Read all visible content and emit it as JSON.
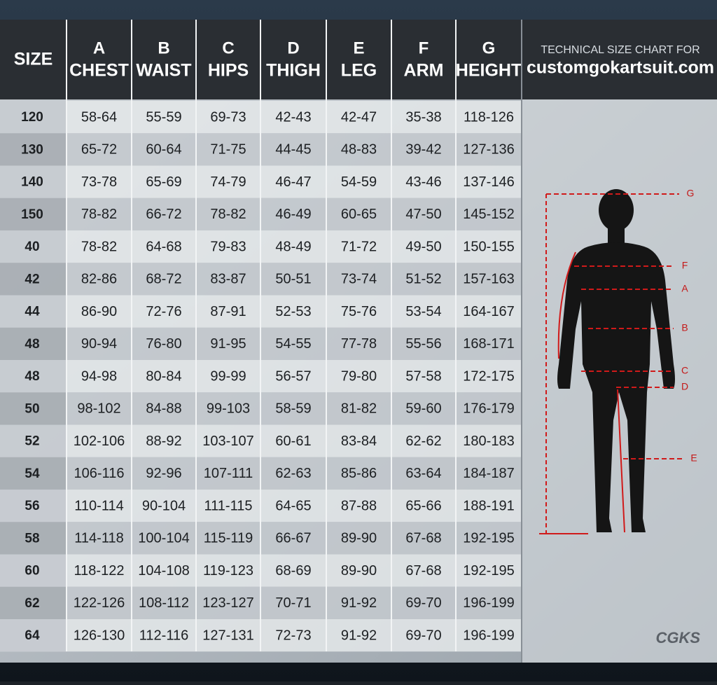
{
  "table": {
    "header": [
      {
        "label": "SIZE"
      },
      {
        "letter": "A",
        "label": "CHEST"
      },
      {
        "letter": "B",
        "label": "WAIST"
      },
      {
        "letter": "C",
        "label": "HIPS"
      },
      {
        "letter": "D",
        "label": "THIGH"
      },
      {
        "letter": "E",
        "label": "LEG"
      },
      {
        "letter": "F",
        "label": "ARM"
      },
      {
        "letter": "G",
        "label": "HEIGHT"
      }
    ],
    "rows": [
      [
        "120",
        "58-64",
        "55-59",
        "69-73",
        "42-43",
        "42-47",
        "35-38",
        "118-126"
      ],
      [
        "130",
        "65-72",
        "60-64",
        "71-75",
        "44-45",
        "48-83",
        "39-42",
        "127-136"
      ],
      [
        "140",
        "73-78",
        "65-69",
        "74-79",
        "46-47",
        "54-59",
        "43-46",
        "137-146"
      ],
      [
        "150",
        "78-82",
        "66-72",
        "78-82",
        "46-49",
        "60-65",
        "47-50",
        "145-152"
      ],
      [
        "40",
        "78-82",
        "64-68",
        "79-83",
        "48-49",
        "71-72",
        "49-50",
        "150-155"
      ],
      [
        "42",
        "82-86",
        "68-72",
        "83-87",
        "50-51",
        "73-74",
        "51-52",
        "157-163"
      ],
      [
        "44",
        "86-90",
        "72-76",
        "87-91",
        "52-53",
        "75-76",
        "53-54",
        "164-167"
      ],
      [
        "48",
        "90-94",
        "76-80",
        "91-95",
        "54-55",
        "77-78",
        "55-56",
        "168-171"
      ],
      [
        "48",
        "94-98",
        "80-84",
        "99-99",
        "56-57",
        "79-80",
        "57-58",
        "172-175"
      ],
      [
        "50",
        "98-102",
        "84-88",
        "99-103",
        "58-59",
        "81-82",
        "59-60",
        "176-179"
      ],
      [
        "52",
        "102-106",
        "88-92",
        "103-107",
        "60-61",
        "83-84",
        "62-62",
        "180-183"
      ],
      [
        "54",
        "106-116",
        "92-96",
        "107-111",
        "62-63",
        "85-86",
        "63-64",
        "184-187"
      ],
      [
        "56",
        "110-114",
        "90-104",
        "111-115",
        "64-65",
        "87-88",
        "65-66",
        "188-191"
      ],
      [
        "58",
        "114-118",
        "100-104",
        "115-119",
        "66-67",
        "89-90",
        "67-68",
        "192-195"
      ],
      [
        "60",
        "118-122",
        "104-108",
        "119-123",
        "68-69",
        "89-90",
        "67-68",
        "192-195"
      ],
      [
        "62",
        "122-126",
        "108-112",
        "123-127",
        "70-71",
        "91-92",
        "69-70",
        "196-199"
      ],
      [
        "64",
        "126-130",
        "112-116",
        "127-131",
        "72-73",
        "91-92",
        "69-70",
        "196-199"
      ]
    ]
  },
  "side": {
    "subtitle": "TECHNICAL SIZE CHART FOR",
    "site": "customgokartsuit.com",
    "logo": "CGKS"
  },
  "figure": {
    "labels": [
      "G",
      "F",
      "A",
      "B",
      "C",
      "D",
      "E"
    ]
  }
}
